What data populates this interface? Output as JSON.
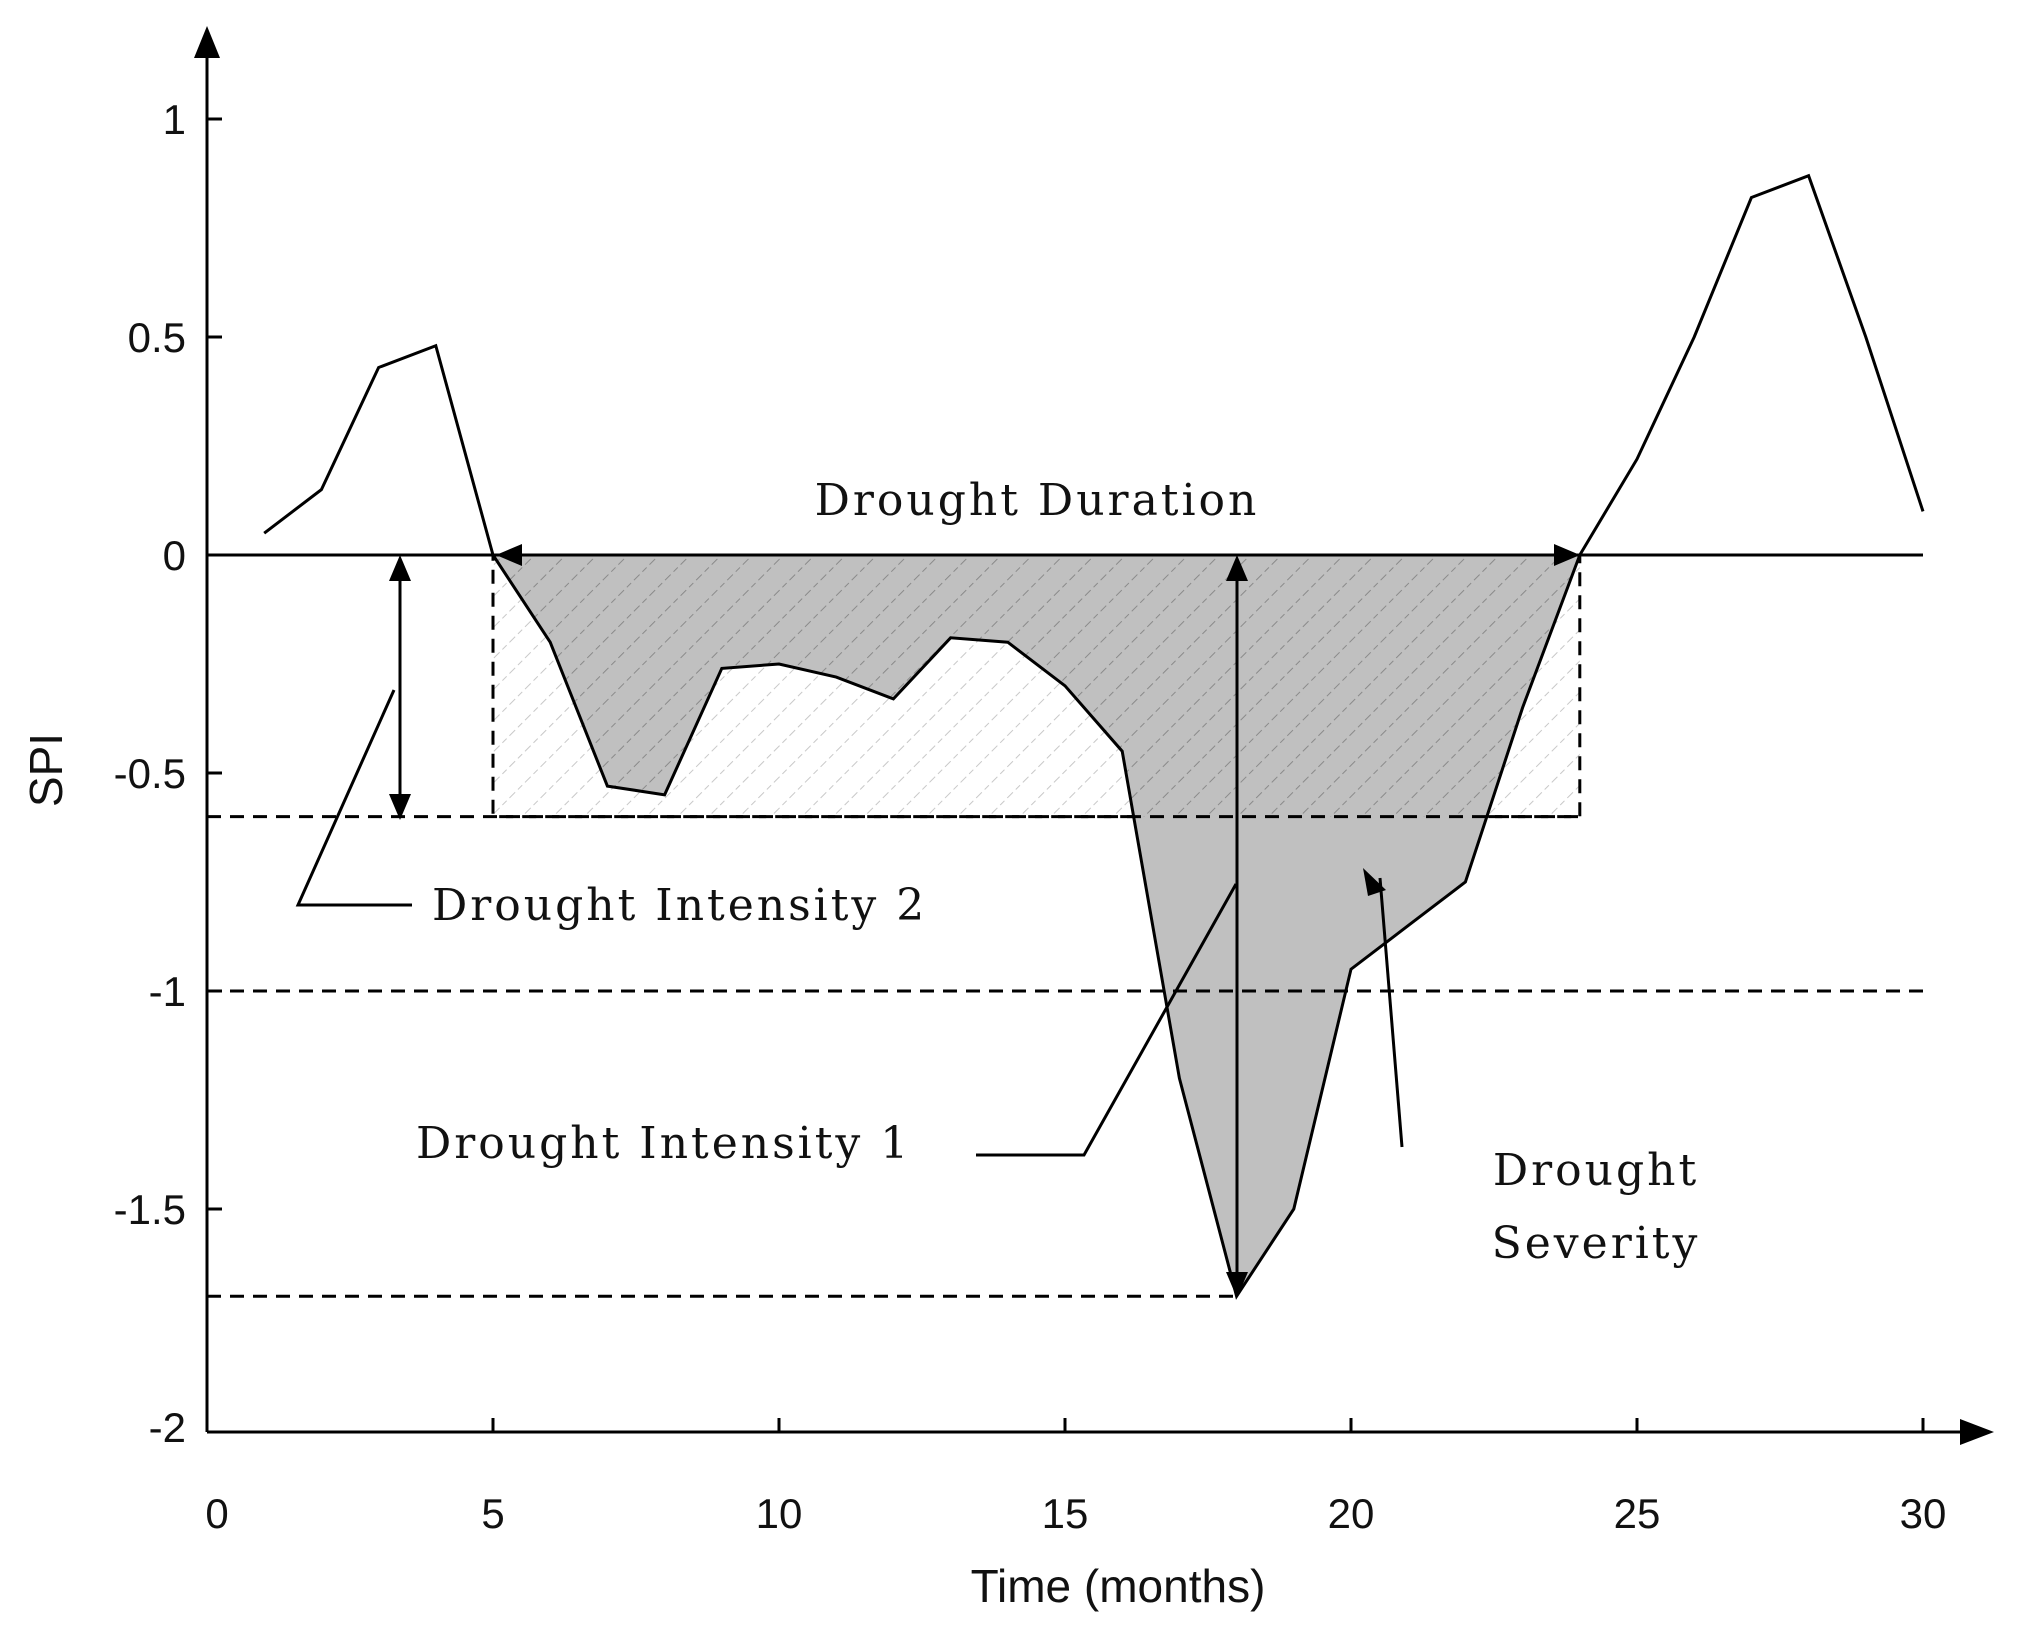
{
  "chart_data": {
    "type": "line",
    "xlabel": "Time (months)",
    "ylabel": "SPI",
    "xlim": [
      0,
      30
    ],
    "ylim": [
      -2,
      1.2
    ],
    "xticks": [
      0,
      5,
      10,
      15,
      20,
      25,
      30
    ],
    "yticks": [
      -2,
      -1.5,
      -1,
      -0.5,
      0,
      0.5,
      1
    ],
    "series": [
      {
        "x": [
          1,
          2,
          3,
          4,
          5,
          6,
          7,
          8,
          9,
          10,
          11,
          12,
          13,
          14,
          15,
          16,
          17,
          18,
          19,
          20,
          21,
          22,
          23,
          24,
          25,
          26,
          27,
          28,
          29,
          30
        ],
        "values": [
          0.05,
          0.15,
          0.43,
          0.48,
          0.0,
          -0.2,
          -0.53,
          -0.55,
          -0.26,
          -0.25,
          -0.28,
          -0.33,
          -0.19,
          -0.2,
          -0.3,
          -0.45,
          -1.2,
          -1.7,
          -1.5,
          -0.95,
          -0.85,
          -0.75,
          -0.35,
          0.0,
          0.22,
          0.5,
          0.82,
          0.87,
          0.5,
          0.1
        ]
      }
    ],
    "reference_lines": [
      0,
      -0.6,
      -1,
      -1.7
    ],
    "annotations": {
      "duration": "Drought Duration",
      "intensity1": "Drought Intensity 1",
      "intensity2": "Drought Intensity 2",
      "severity_line1": "Drought",
      "severity_line2": "Severity"
    },
    "fill_color": "#c0c0c0",
    "line_color": "#000000"
  }
}
